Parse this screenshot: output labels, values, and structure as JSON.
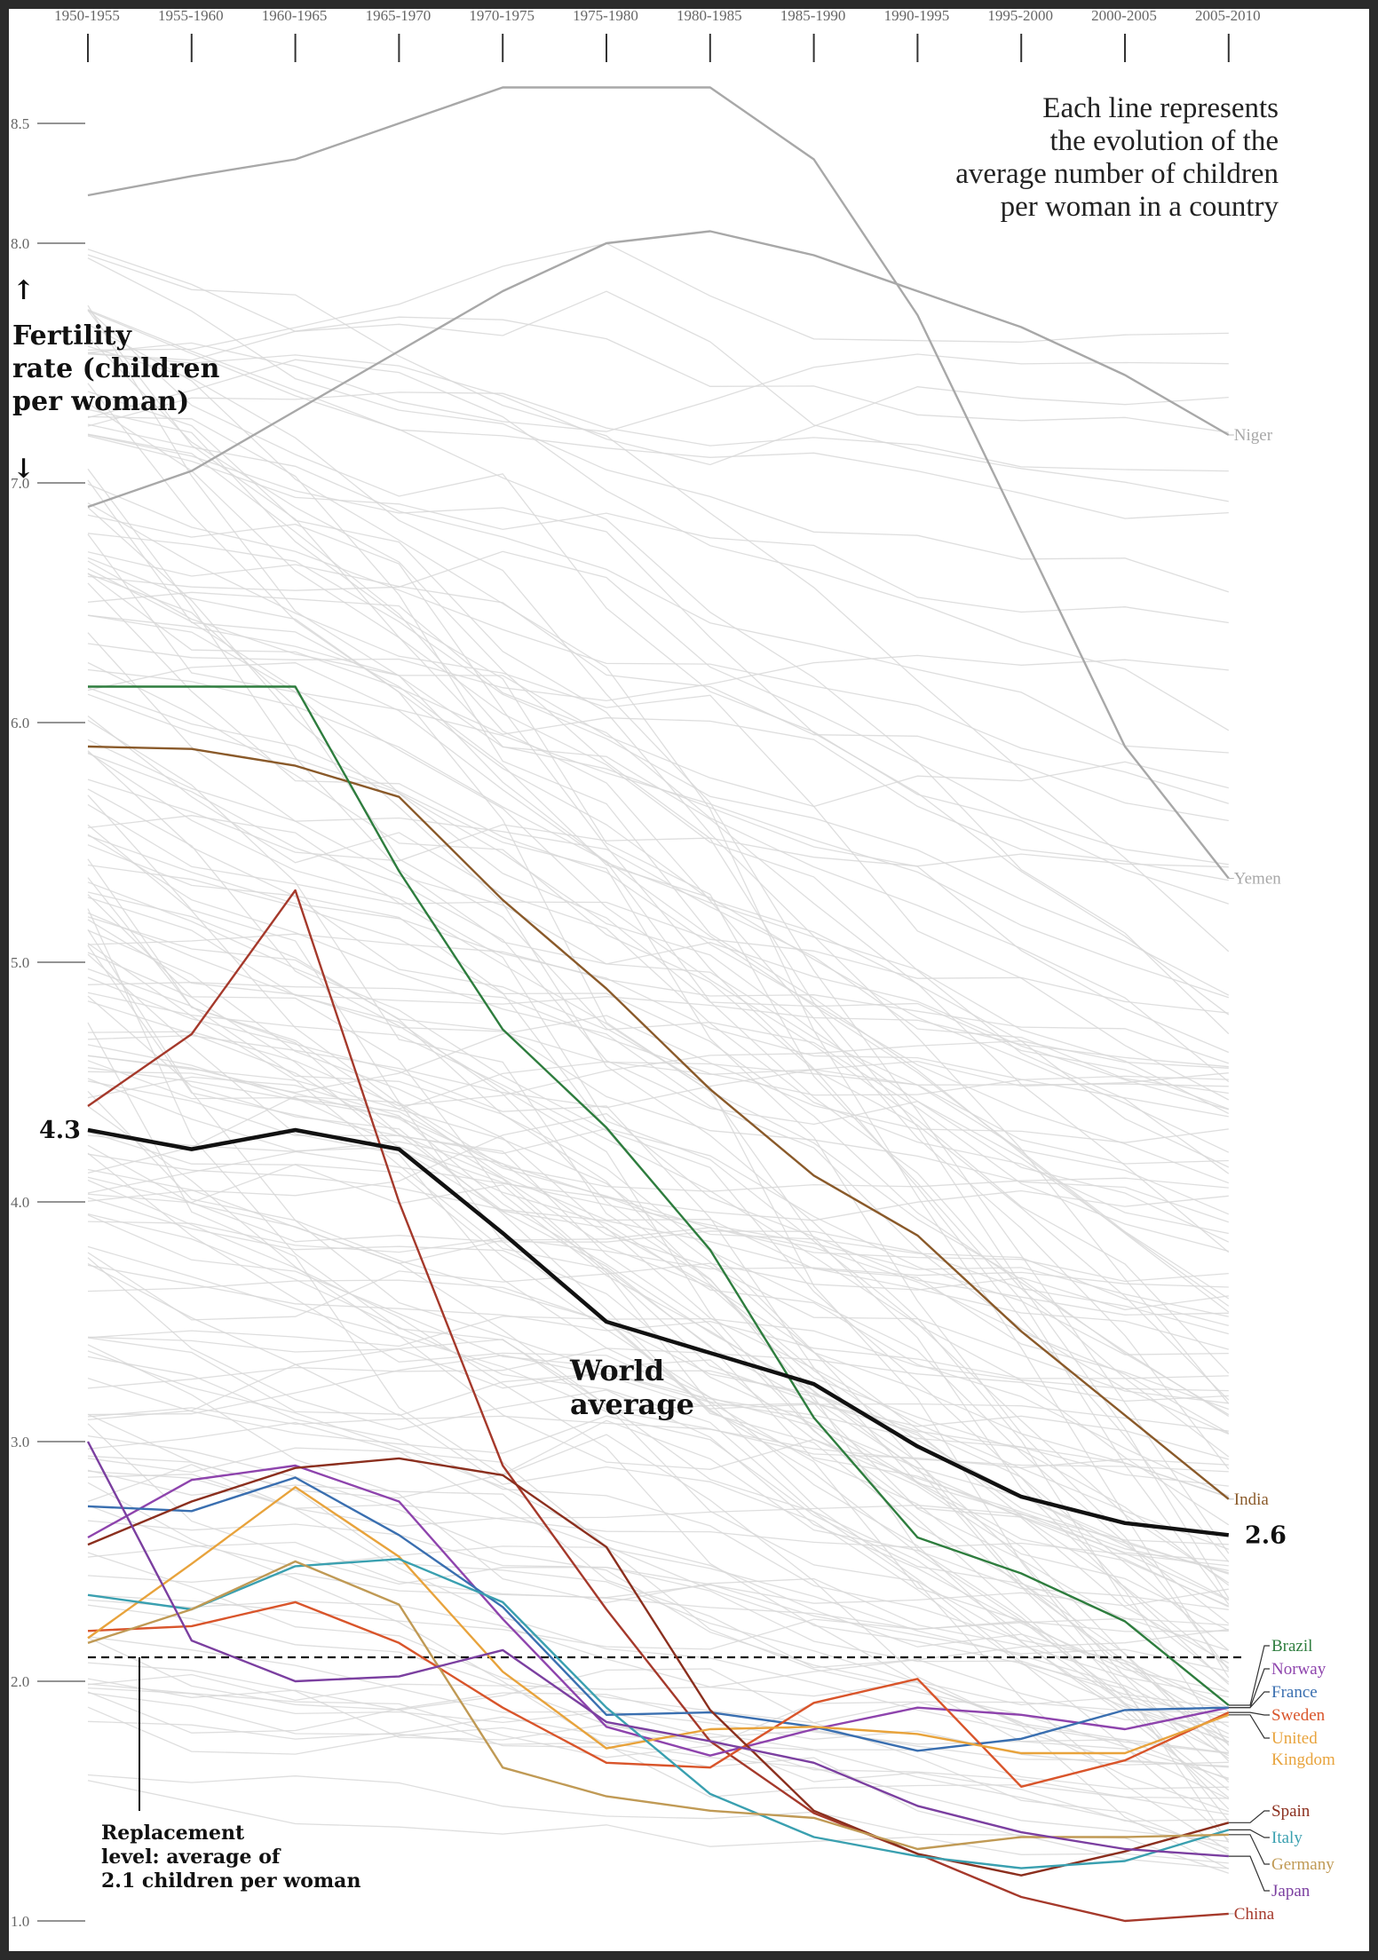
{
  "chart_data": {
    "type": "line",
    "title": "",
    "ylabel": "Fertility rate (children per woman)",
    "xlabel": "",
    "categories": [
      "1950-1955",
      "1955-1960",
      "1960-1965",
      "1965-1970",
      "1970-1975",
      "1975-1980",
      "1980-1985",
      "1985-1990",
      "1990-1995",
      "1995-2000",
      "2000-2005",
      "2005-2010"
    ],
    "y_ticks": [
      "1.0",
      "2.0",
      "3.0",
      "4.0",
      "5.0",
      "6.0",
      "7.0",
      "8.0",
      "8.5"
    ],
    "ylim": [
      1.0,
      8.8
    ],
    "note": [
      "Each line represents",
      "the evolution of the",
      "average number of children",
      "per woman in a country"
    ],
    "ylabel_lines": [
      "Fertility",
      "rate (children",
      "per woman)"
    ],
    "arrow_up": "↑",
    "arrow_down": "↓",
    "replacement": {
      "value": 2.1,
      "label_lines": [
        "Replacement",
        "level: average of",
        "2.1 children per woman"
      ]
    },
    "world_average": {
      "label_lines": [
        "World",
        "average"
      ],
      "start_label": "4.3",
      "end_label": "2.6",
      "values": [
        4.3,
        4.22,
        4.3,
        4.22,
        3.87,
        3.5,
        3.37,
        3.24,
        2.98,
        2.77,
        2.66,
        2.61
      ]
    },
    "background_color": "#d8d8d8",
    "series": [
      {
        "name": "Niger",
        "color": "#a8a8a8",
        "values": [
          6.9,
          7.05,
          7.3,
          7.55,
          7.8,
          8.0,
          8.05,
          7.95,
          7.8,
          7.65,
          7.45,
          7.2
        ]
      },
      {
        "name": "Yemen",
        "color": "#a8a8a8",
        "values": [
          8.2,
          8.28,
          8.35,
          8.5,
          8.65,
          8.65,
          8.65,
          8.35,
          7.7,
          6.8,
          5.9,
          5.35
        ]
      },
      {
        "name": "India",
        "color": "#8a5a2a",
        "values": [
          5.9,
          5.89,
          5.82,
          5.69,
          5.26,
          4.89,
          4.47,
          4.11,
          3.86,
          3.46,
          3.11,
          2.76
        ]
      },
      {
        "name": "Brazil",
        "color": "#2e7d3e",
        "values": [
          6.15,
          6.15,
          6.15,
          5.38,
          4.72,
          4.31,
          3.8,
          3.1,
          2.6,
          2.45,
          2.25,
          1.9
        ]
      },
      {
        "name": "China",
        "color": "#a5392b",
        "values": [
          4.4,
          4.7,
          5.3,
          4.0,
          2.9,
          2.3,
          1.75,
          1.45,
          1.28,
          1.1,
          1.0,
          1.03
        ]
      },
      {
        "name": "Norway",
        "color": "#8e44ad",
        "values": [
          2.6,
          2.84,
          2.9,
          2.75,
          2.26,
          1.81,
          1.69,
          1.8,
          1.89,
          1.86,
          1.8,
          1.89
        ]
      },
      {
        "name": "France",
        "color": "#3a6fb0",
        "values": [
          2.73,
          2.71,
          2.85,
          2.61,
          2.31,
          1.86,
          1.87,
          1.81,
          1.71,
          1.76,
          1.88,
          1.89
        ]
      },
      {
        "name": "Sweden",
        "color": "#d9552b",
        "values": [
          2.21,
          2.23,
          2.33,
          2.16,
          1.89,
          1.66,
          1.64,
          1.91,
          2.01,
          1.56,
          1.67,
          1.87
        ]
      },
      {
        "name": "United Kingdom",
        "color": "#e8a33c",
        "values": [
          2.18,
          2.49,
          2.81,
          2.52,
          2.04,
          1.72,
          1.8,
          1.81,
          1.78,
          1.7,
          1.7,
          1.86
        ]
      },
      {
        "name": "Spain",
        "color": "#8b2f1e",
        "values": [
          2.57,
          2.75,
          2.89,
          2.93,
          2.86,
          2.56,
          1.88,
          1.46,
          1.28,
          1.19,
          1.29,
          1.41
        ]
      },
      {
        "name": "Italy",
        "color": "#3aa0b0",
        "values": [
          2.36,
          2.3,
          2.48,
          2.51,
          2.33,
          1.89,
          1.53,
          1.35,
          1.27,
          1.22,
          1.25,
          1.38
        ]
      },
      {
        "name": "Germany",
        "color": "#c09a55",
        "values": [
          2.16,
          2.3,
          2.5,
          2.32,
          1.64,
          1.52,
          1.46,
          1.43,
          1.3,
          1.35,
          1.35,
          1.36
        ]
      },
      {
        "name": "Japan",
        "color": "#7b3fa0",
        "values": [
          3.0,
          2.17,
          2.0,
          2.02,
          2.13,
          1.83,
          1.75,
          1.66,
          1.48,
          1.37,
          1.3,
          1.27
        ]
      }
    ],
    "side_labels": [
      {
        "text": "Niger"
      },
      {
        "text": "Yemen"
      },
      {
        "text": "India"
      },
      {
        "text": "Brazil"
      },
      {
        "text": "Norway"
      },
      {
        "text": "France"
      },
      {
        "text": "Sweden"
      },
      {
        "text": "United"
      },
      {
        "text": "Kingdom"
      },
      {
        "text": "Spain"
      },
      {
        "text": "Italy"
      },
      {
        "text": "Germany"
      },
      {
        "text": "Japan"
      },
      {
        "text": "China"
      }
    ]
  }
}
